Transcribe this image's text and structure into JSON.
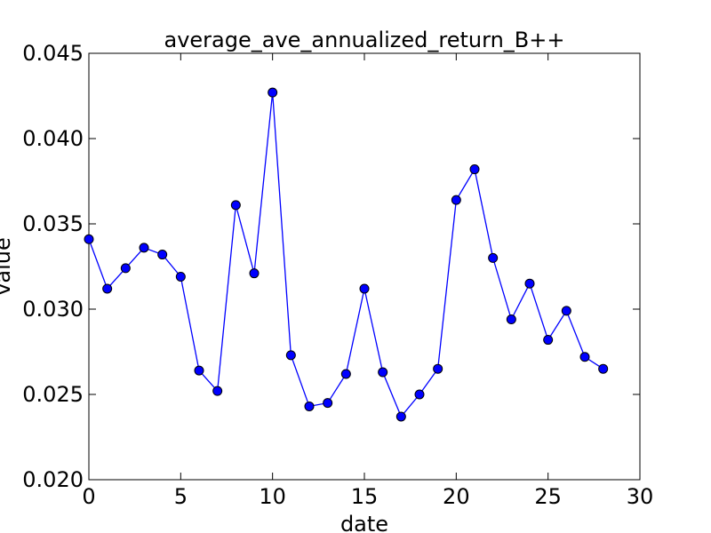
{
  "chart_data": {
    "type": "line",
    "title": "average_ave_annualized_return_B++",
    "xlabel": "date",
    "ylabel": "value",
    "xlim": [
      0,
      30
    ],
    "ylim": [
      0.02,
      0.045
    ],
    "x_ticks": [
      "0",
      "5",
      "10",
      "15",
      "20",
      "25",
      "30"
    ],
    "y_ticks": [
      "0.020",
      "0.025",
      "0.030",
      "0.035",
      "0.040",
      "0.045"
    ],
    "grid": false,
    "series": [
      {
        "color": "#0000ff",
        "marker": "circle",
        "x": [
          0,
          1,
          2,
          3,
          4,
          5,
          6,
          7,
          8,
          9,
          10,
          11,
          12,
          13,
          14,
          15,
          16,
          17,
          18,
          19,
          20,
          21,
          22,
          23,
          24,
          25,
          26,
          27,
          28
        ],
        "y": [
          0.0341,
          0.0312,
          0.0324,
          0.0336,
          0.0332,
          0.0319,
          0.0264,
          0.0252,
          0.0361,
          0.0321,
          0.0427,
          0.0273,
          0.0243,
          0.0245,
          0.0262,
          0.0312,
          0.0263,
          0.0237,
          0.025,
          0.0265,
          0.0364,
          0.0382,
          0.033,
          0.0294,
          0.0315,
          0.0282,
          0.0299,
          0.0272,
          0.0265
        ]
      }
    ]
  }
}
